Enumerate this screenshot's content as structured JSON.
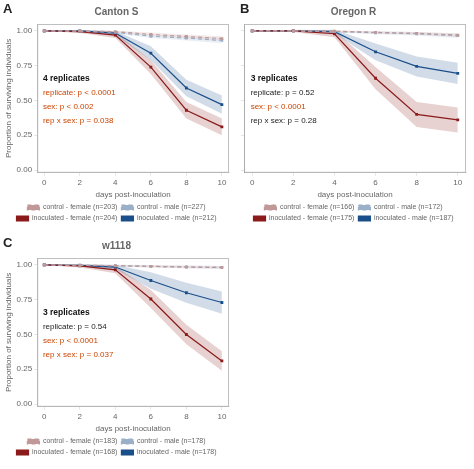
{
  "chart_data": [
    {
      "type": "line",
      "title": "Canton S",
      "annotations": [
        {
          "text": "A"
        },
        {
          "text": "4 replicates",
          "color": "#111111"
        },
        {
          "text": "replicate: p < 0.0001",
          "color": "#cc4400"
        },
        {
          "text": "sex: p < 0.002",
          "color": "#cc4400"
        },
        {
          "text": "rep x sex: p = 0.038",
          "color": "#cc4400"
        }
      ],
      "xlabel": "days post-inoculation",
      "ylabel": "Proportion of surviving individuals",
      "x": [
        0,
        2,
        4,
        6,
        8,
        10
      ],
      "series": [
        {
          "name": "control - female (n=203)",
          "color": "#c09898",
          "line_style": "dashed",
          "marker": "square",
          "values": [
            1.0,
            1.0,
            0.995,
            0.975,
            0.96,
            0.945
          ],
          "low": [
            1.0,
            0.995,
            0.988,
            0.963,
            0.945,
            0.928
          ],
          "high": [
            1.0,
            1.005,
            1.002,
            0.988,
            0.975,
            0.962
          ]
        },
        {
          "name": "control - male (n=227)",
          "color": "#9ab0c8",
          "line_style": "dashed",
          "marker": "square",
          "values": [
            1.0,
            0.998,
            0.99,
            0.962,
            0.948,
            0.932
          ],
          "low": [
            1.0,
            0.992,
            0.982,
            0.95,
            0.932,
            0.912
          ],
          "high": [
            1.0,
            1.004,
            0.998,
            0.974,
            0.964,
            0.952
          ]
        },
        {
          "name": "inoculated - female (n=204)",
          "color": "#8b1a1a",
          "line_style": "solid",
          "marker": "square",
          "values": [
            1.0,
            0.995,
            0.97,
            0.74,
            0.43,
            0.31
          ],
          "low": [
            1.0,
            0.985,
            0.95,
            0.69,
            0.37,
            0.25
          ],
          "high": [
            1.0,
            1.005,
            0.99,
            0.79,
            0.49,
            0.37
          ]
        },
        {
          "name": "inoculated - male (n=212)",
          "color": "#1a4f8a",
          "line_style": "solid",
          "marker": "square",
          "values": [
            1.0,
            1.0,
            0.985,
            0.84,
            0.59,
            0.47
          ],
          "low": [
            1.0,
            0.993,
            0.97,
            0.79,
            0.53,
            0.405
          ],
          "high": [
            1.0,
            1.007,
            1.0,
            0.89,
            0.65,
            0.535
          ]
        }
      ],
      "xlim": [
        -0.4,
        10.4
      ],
      "ylim": [
        -0.02,
        1.05
      ],
      "xticks": [
        0,
        2,
        4,
        6,
        8,
        10
      ],
      "yticks": [
        {
          "value": 0,
          "label": "0.00"
        },
        0.25,
        {
          "value": 0.5,
          "label": "0.50"
        },
        0.75,
        {
          "value": 1,
          "label": "1.00"
        }
      ],
      "grid": false,
      "legend": "bottom"
    },
    {
      "type": "line",
      "title": "Oregon R",
      "annotations": [
        {
          "text": "B"
        },
        {
          "text": "3 replicates",
          "color": "#111111"
        },
        {
          "text": "replicate: p = 0.52",
          "color": "#222222"
        },
        {
          "text": "sex: p < 0.0001",
          "color": "#cc4400"
        },
        {
          "text": "rep x sex: p = 0.28",
          "color": "#222222"
        }
      ],
      "xlabel": "days post-inoculation",
      "x": [
        0,
        2,
        4,
        6,
        8,
        10
      ],
      "series": [
        {
          "name": "control - female (n=166)",
          "color": "#c09898",
          "line_style": "dashed",
          "marker": "square",
          "values": [
            1.0,
            1.0,
            0.998,
            0.99,
            0.983,
            0.97
          ],
          "low": [
            1.0,
            0.996,
            0.992,
            0.982,
            0.973,
            0.956
          ],
          "high": [
            1.0,
            1.004,
            1.004,
            0.998,
            0.993,
            0.984
          ]
        },
        {
          "name": "control - male (n=172)",
          "color": "#9ab0c8",
          "line_style": "dashed",
          "marker": "square",
          "values": [
            1.0,
            1.0,
            0.996,
            0.987,
            0.98,
            0.966
          ],
          "low": [
            1.0,
            0.995,
            0.989,
            0.977,
            0.968,
            0.95
          ],
          "high": [
            1.0,
            1.005,
            1.003,
            0.997,
            0.992,
            0.982
          ]
        },
        {
          "name": "inoculated - female (n=175)",
          "color": "#8b1a1a",
          "line_style": "solid",
          "marker": "square",
          "values": [
            1.0,
            1.0,
            0.98,
            0.66,
            0.4,
            0.36
          ],
          "low": [
            1.0,
            0.992,
            0.955,
            0.58,
            0.31,
            0.27
          ],
          "high": [
            1.0,
            1.008,
            1.005,
            0.74,
            0.49,
            0.45
          ]
        },
        {
          "name": "inoculated - male (n=187)",
          "color": "#1a4f8a",
          "line_style": "solid",
          "marker": "square",
          "values": [
            1.0,
            1.0,
            0.995,
            0.85,
            0.745,
            0.695
          ],
          "low": [
            1.0,
            0.994,
            0.982,
            0.79,
            0.673,
            0.618
          ],
          "high": [
            1.0,
            1.006,
            1.008,
            0.91,
            0.817,
            0.772
          ]
        }
      ],
      "xlim": [
        -0.4,
        10.4
      ],
      "ylim": [
        -0.02,
        1.05
      ],
      "xticks": [
        0,
        2,
        4,
        6,
        8,
        10
      ],
      "yticks": [
        0,
        0.25,
        0.5,
        0.75,
        1
      ],
      "tick_labels": "x",
      "grid": false,
      "legend": "bottom"
    },
    {
      "type": "line",
      "title": "w1118",
      "annotations": [
        {
          "text": "C"
        },
        {
          "text": "3 replicates",
          "color": "#111111"
        },
        {
          "text": "replicate: p = 0.54",
          "color": "#222222"
        },
        {
          "text": "sex: p < 0.0001",
          "color": "#cc4400"
        },
        {
          "text": "rep x sex: p = 0.037",
          "color": "#cc4400"
        }
      ],
      "xlabel": "days post-inoculation",
      "ylabel": "Proportion of surviving individuals",
      "x": [
        0,
        2,
        4,
        6,
        8,
        10
      ],
      "series": [
        {
          "name": "control - female (n=183)",
          "color": "#c09898",
          "line_style": "dashed",
          "marker": "square",
          "values": [
            1.0,
            0.998,
            0.995,
            0.99,
            0.985,
            0.982
          ],
          "low": [
            1.0,
            0.993,
            0.988,
            0.982,
            0.976,
            0.972
          ],
          "high": [
            1.0,
            1.003,
            1.002,
            0.998,
            0.994,
            0.992
          ]
        },
        {
          "name": "control - male (n=178)",
          "color": "#9ab0c8",
          "line_style": "dashed",
          "marker": "square",
          "values": [
            1.0,
            0.998,
            0.994,
            0.99,
            0.986,
            0.982
          ],
          "low": [
            1.0,
            0.992,
            0.986,
            0.981,
            0.976,
            0.971
          ],
          "high": [
            1.0,
            1.004,
            1.002,
            0.999,
            0.996,
            0.993
          ]
        },
        {
          "name": "inoculated - female (n=168)",
          "color": "#8b1a1a",
          "line_style": "solid",
          "marker": "square",
          "values": [
            1.0,
            0.993,
            0.965,
            0.755,
            0.5,
            0.31
          ],
          "low": [
            1.0,
            0.982,
            0.94,
            0.69,
            0.43,
            0.24
          ],
          "high": [
            1.0,
            1.004,
            0.99,
            0.82,
            0.57,
            0.38
          ]
        },
        {
          "name": "inoculated - male (n=178)",
          "color": "#1a4f8a",
          "line_style": "solid",
          "marker": "square",
          "values": [
            1.0,
            0.997,
            0.985,
            0.888,
            0.8,
            0.73
          ],
          "low": [
            1.0,
            0.989,
            0.97,
            0.828,
            0.728,
            0.65
          ],
          "high": [
            1.0,
            1.005,
            1.0,
            0.948,
            0.872,
            0.81
          ]
        }
      ],
      "xlim": [
        -0.4,
        10.4
      ],
      "ylim": [
        -0.02,
        1.05
      ],
      "xticks": [
        0,
        2,
        4,
        6,
        8,
        10
      ],
      "yticks": [
        {
          "value": 0,
          "label": "0.00"
        },
        0.25,
        {
          "value": 0.5,
          "label": "0.50"
        },
        0.75,
        {
          "value": 1,
          "label": "1.00"
        }
      ],
      "grid": false,
      "legend": "bottom"
    }
  ]
}
